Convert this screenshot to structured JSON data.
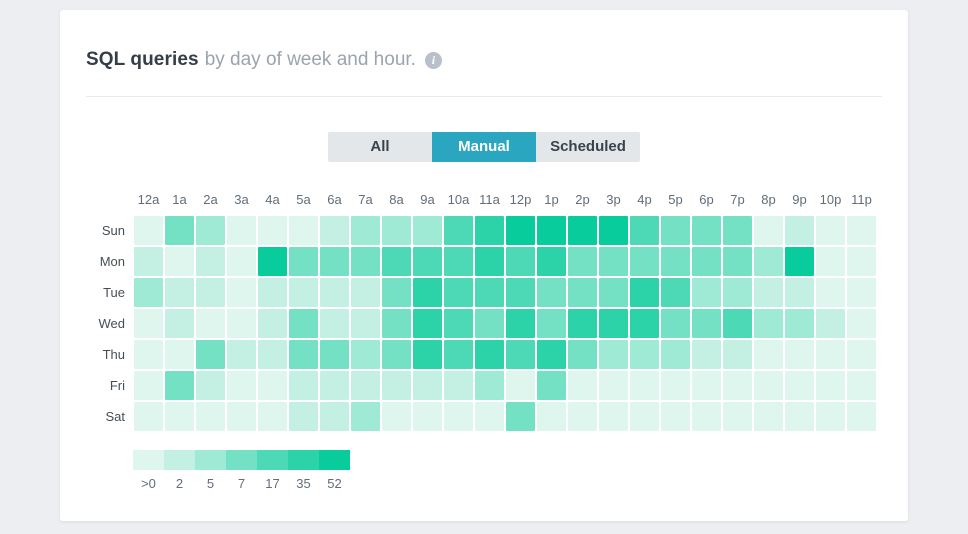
{
  "card": {
    "title_bold": "SQL queries",
    "title_rest": "by day of week and hour.",
    "info_glyph": "i"
  },
  "tabs": [
    {
      "label": "All",
      "selected": false
    },
    {
      "label": "Manual",
      "selected": true
    },
    {
      "label": "Scheduled",
      "selected": false
    }
  ],
  "colors": {
    "selected_tab_bg": "#2ba6c0",
    "tab_bar_bg": "#e4e7ea",
    "palette": [
      "#def6ee",
      "#c3f0e3",
      "#9fead5",
      "#74e1c5",
      "#4dd9b6",
      "#2cd3a9",
      "#08cc9b"
    ]
  },
  "chart_data": {
    "type": "heatmap",
    "title": "SQL queries by day of week and hour.",
    "x": [
      "12a",
      "1a",
      "2a",
      "3a",
      "4a",
      "5a",
      "6a",
      "7a",
      "8a",
      "9a",
      "10a",
      "11a",
      "12p",
      "1p",
      "2p",
      "3p",
      "4p",
      "5p",
      "6p",
      "7p",
      "8p",
      "9p",
      "10p",
      "11p"
    ],
    "y": [
      "Sun",
      "Mon",
      "Tue",
      "Wed",
      "Thu",
      "Fri",
      "Sat"
    ],
    "legend_labels": [
      ">0",
      "2",
      "5",
      "7",
      "17",
      "35",
      "52"
    ],
    "legend_note": "color level n corresponds to legend bucket n (1=lowest >0, 7=highest 52+)",
    "levels": [
      [
        1,
        4,
        3,
        1,
        1,
        1,
        2,
        3,
        3,
        3,
        5,
        6,
        7,
        7,
        7,
        7,
        5,
        4,
        4,
        4,
        1,
        2,
        1,
        1
      ],
      [
        2,
        1,
        2,
        1,
        7,
        4,
        4,
        4,
        5,
        5,
        5,
        6,
        5,
        6,
        4,
        4,
        4,
        4,
        4,
        4,
        3,
        7,
        1,
        1
      ],
      [
        3,
        2,
        2,
        1,
        2,
        2,
        2,
        2,
        4,
        6,
        5,
        5,
        5,
        4,
        4,
        4,
        6,
        5,
        3,
        3,
        2,
        2,
        1,
        1
      ],
      [
        1,
        2,
        1,
        1,
        2,
        4,
        2,
        2,
        4,
        6,
        5,
        4,
        6,
        4,
        6,
        6,
        6,
        4,
        4,
        5,
        3,
        3,
        2,
        1
      ],
      [
        1,
        1,
        4,
        2,
        2,
        4,
        4,
        3,
        4,
        6,
        5,
        6,
        5,
        6,
        4,
        3,
        3,
        3,
        2,
        2,
        1,
        1,
        1,
        1
      ],
      [
        1,
        4,
        2,
        1,
        1,
        2,
        2,
        2,
        2,
        2,
        2,
        3,
        1,
        4,
        1,
        1,
        1,
        1,
        1,
        1,
        1,
        1,
        1,
        1
      ],
      [
        1,
        1,
        1,
        1,
        1,
        2,
        2,
        3,
        1,
        1,
        1,
        1,
        4,
        1,
        1,
        1,
        1,
        1,
        1,
        1,
        1,
        1,
        1,
        1
      ]
    ]
  }
}
